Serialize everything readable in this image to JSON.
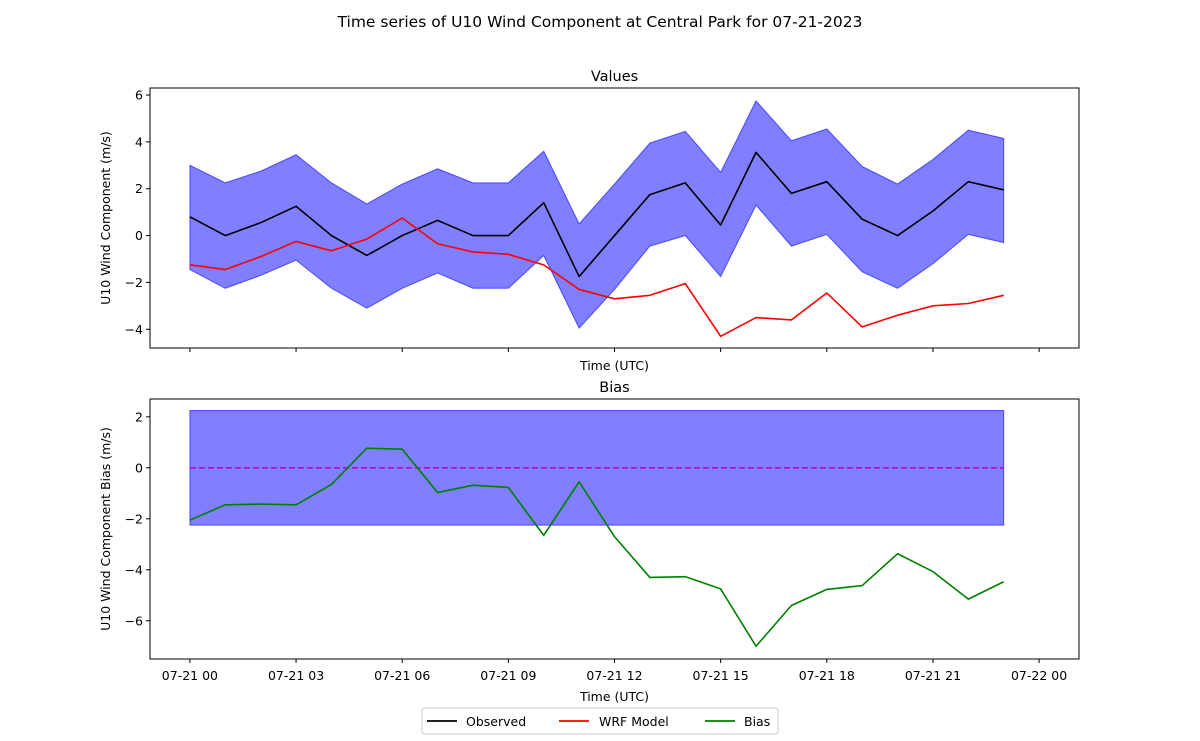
{
  "figure": {
    "suptitle": "Time series of U10 Wind Component at Central Park for 07-21-2023"
  },
  "legend": {
    "placement": "bottom-center",
    "entries": [
      {
        "label": "Observed",
        "color": "#000000"
      },
      {
        "label": "WRF Model",
        "color": "#ff0000"
      },
      {
        "label": "Bias",
        "color": "#008000"
      }
    ]
  },
  "colors": {
    "observed": "#000000",
    "model": "#ff0000",
    "bias": "#008000",
    "band": "#0000ff",
    "zero_line": "#bf00bf"
  },
  "chart_data": [
    {
      "type": "line",
      "title": "Values",
      "xlabel": "Time (UTC)",
      "ylabel": "U10 Wind Component (m/s)",
      "x": [
        "07-21 00",
        "07-21 01",
        "07-21 02",
        "07-21 03",
        "07-21 04",
        "07-21 05",
        "07-21 06",
        "07-21 07",
        "07-21 08",
        "07-21 09",
        "07-21 10",
        "07-21 11",
        "07-21 12",
        "07-21 13",
        "07-21 14",
        "07-21 15",
        "07-21 16",
        "07-21 17",
        "07-21 18",
        "07-21 19",
        "07-21 20",
        "07-21 21",
        "07-21 22",
        "07-21 23"
      ],
      "xlim": [
        "07-21 00",
        "07-22 00"
      ],
      "ylim": [
        -4.8,
        6.3
      ],
      "yticks": [
        -4,
        -2,
        0,
        2,
        4,
        6
      ],
      "show_xtick_labels": false,
      "grid": false,
      "series": [
        {
          "name": "Observed",
          "values": [
            0.8,
            0.0,
            0.55,
            1.25,
            0.0,
            -0.85,
            0.0,
            0.65,
            0.0,
            0.0,
            1.4,
            -1.75,
            0.0,
            1.75,
            2.25,
            0.45,
            3.55,
            1.8,
            2.3,
            0.7,
            0.0,
            1.05,
            2.3,
            1.95
          ]
        },
        {
          "name": "WRF Model",
          "values": [
            -1.25,
            -1.45,
            -0.9,
            -0.25,
            -0.65,
            -0.15,
            0.75,
            -0.35,
            -0.7,
            -0.8,
            -1.25,
            -2.3,
            -2.7,
            -2.55,
            -2.05,
            -4.3,
            -3.5,
            -3.6,
            -2.45,
            -3.9,
            -3.4,
            -3.0,
            -2.9,
            -2.55
          ]
        }
      ],
      "band": {
        "upper": [
          3.0,
          2.25,
          2.75,
          3.45,
          2.25,
          1.35,
          2.2,
          2.85,
          2.25,
          2.25,
          3.6,
          0.5,
          2.2,
          3.95,
          4.45,
          2.7,
          5.75,
          4.05,
          4.55,
          2.95,
          2.2,
          3.25,
          4.5,
          4.15
        ],
        "lower": [
          -1.45,
          -2.25,
          -1.7,
          -1.05,
          -2.25,
          -3.1,
          -2.25,
          -1.6,
          -2.25,
          -2.25,
          -0.85,
          -3.95,
          -2.3,
          -0.45,
          0.0,
          -1.75,
          1.3,
          -0.45,
          0.05,
          -1.55,
          -2.25,
          -1.2,
          0.05,
          -0.3
        ]
      }
    },
    {
      "type": "line",
      "title": "Bias",
      "xlabel": "Time (UTC)",
      "ylabel": "U10 Wind Component Bias (m/s)",
      "x": [
        "07-21 00",
        "07-21 01",
        "07-21 02",
        "07-21 03",
        "07-21 04",
        "07-21 05",
        "07-21 06",
        "07-21 07",
        "07-21 08",
        "07-21 09",
        "07-21 10",
        "07-21 11",
        "07-21 12",
        "07-21 13",
        "07-21 14",
        "07-21 15",
        "07-21 16",
        "07-21 17",
        "07-21 18",
        "07-21 19",
        "07-21 20",
        "07-21 21",
        "07-21 22",
        "07-21 23"
      ],
      "xlim": [
        "07-21 00",
        "07-22 00"
      ],
      "xticks": [
        "07-21 00",
        "07-21 03",
        "07-21 06",
        "07-21 09",
        "07-21 12",
        "07-21 15",
        "07-21 18",
        "07-21 21",
        "07-22 00"
      ],
      "ylim": [
        -7.5,
        2.7
      ],
      "yticks": [
        -6,
        -4,
        -2,
        0,
        2
      ],
      "grid": false,
      "series": [
        {
          "name": "Bias",
          "values": [
            -2.05,
            -1.45,
            -1.42,
            -1.45,
            -0.65,
            0.77,
            0.73,
            -0.97,
            -0.68,
            -0.77,
            -2.65,
            -0.55,
            -2.7,
            -4.3,
            -4.27,
            -4.75,
            -7.0,
            -5.4,
            -4.77,
            -4.62,
            -3.37,
            -4.07,
            -5.15,
            -4.47
          ]
        }
      ],
      "band": {
        "upper": 2.25,
        "lower": -2.25
      },
      "reference_line": 0
    }
  ]
}
